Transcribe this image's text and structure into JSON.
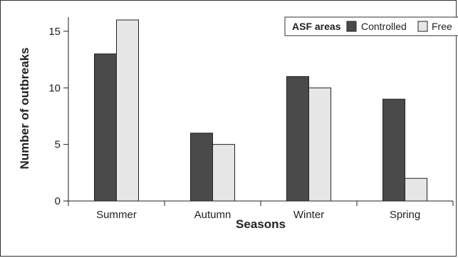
{
  "chart_data": {
    "type": "bar",
    "categories": [
      "Summer",
      "Autumn",
      "Winter",
      "Spring"
    ],
    "series": [
      {
        "name": "Controlled",
        "values": [
          13,
          6,
          11,
          9
        ],
        "color": "#4a4a4a"
      },
      {
        "name": "Free",
        "values": [
          16,
          5,
          10,
          2
        ],
        "color": "#e6e6e6"
      }
    ],
    "xlabel": "Seasons",
    "ylabel": "Number of outbreaks",
    "ylim": [
      0,
      16
    ],
    "yticks": [
      "0",
      "5",
      "10",
      "15"
    ],
    "legend": {
      "title": "ASF areas",
      "placement": "top-right"
    },
    "grid": false
  }
}
